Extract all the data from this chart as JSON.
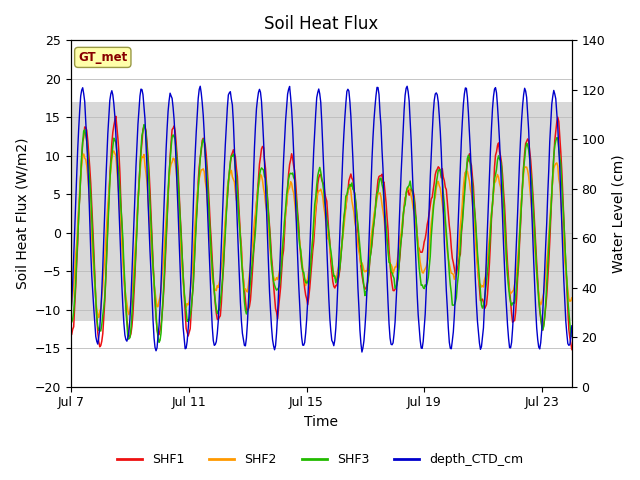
{
  "title": "Soil Heat Flux",
  "xlabel": "Time",
  "ylabel_left": "Soil Heat Flux (W/m2)",
  "ylabel_right": "Water Level (cm)",
  "ylim_left": [
    -20,
    25
  ],
  "ylim_right": [
    0,
    140
  ],
  "yticks_left": [
    -20,
    -15,
    -10,
    -5,
    0,
    5,
    10,
    15,
    20,
    25
  ],
  "yticks_right": [
    0,
    20,
    40,
    60,
    80,
    100,
    120,
    140
  ],
  "xtick_labels": [
    "Jul 7",
    "Jul 11",
    "Jul 15",
    "Jul 19",
    "Jul 23"
  ],
  "xtick_positions": [
    0,
    4,
    8,
    12,
    16
  ],
  "xlim": [
    0,
    17
  ],
  "colors": {
    "SHF1": "#ee1111",
    "SHF2": "#ff9900",
    "SHF3": "#22bb00",
    "depth_CTD_cm": "#0000cc"
  },
  "gt_met_label": "GT_met",
  "gt_met_bg": "#ffffaa",
  "gt_met_fg": "#880000",
  "background_color": "#ffffff",
  "shaded_color": "#d8d8d8",
  "shaded_ymin": -11.5,
  "shaded_ymax": 17.0,
  "grid_color": "#bbbbbb",
  "lw_shf": 1.1,
  "lw_depth": 1.0,
  "n_points": 500,
  "n_days": 17
}
